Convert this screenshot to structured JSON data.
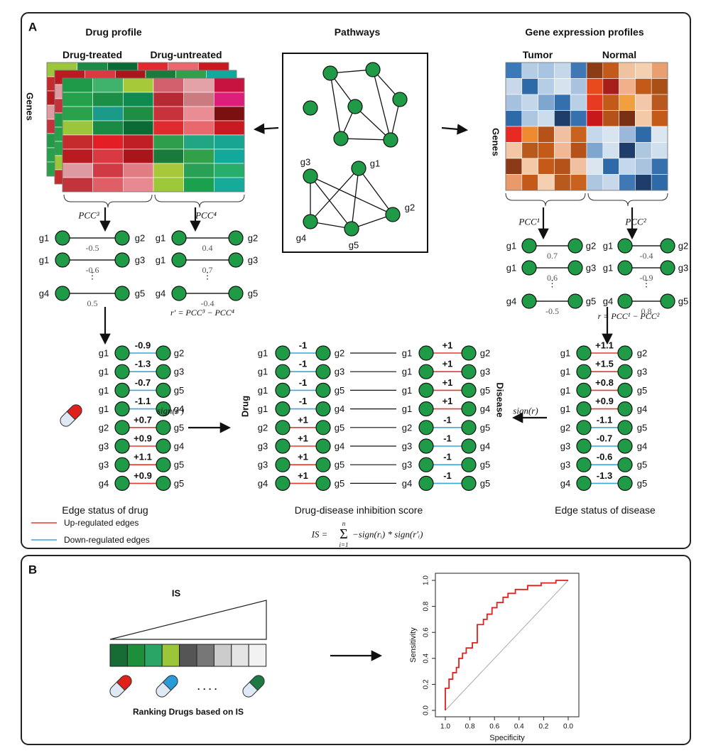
{
  "panel_a": {
    "label": "A",
    "drug_profile": "Drug profile",
    "drug_treated": "Drug-treated",
    "drug_untreated": "Drug-untreated",
    "genes_left": "Genes",
    "pathways": "Pathways",
    "pathway_nodes": [
      "g3",
      "g1",
      "g2",
      "g4",
      "g5"
    ],
    "gene_expression": "Gene expression profiles",
    "tumor": "Tumor",
    "normal": "Normal",
    "genes_right": "Genes",
    "dots": "⋮",
    "pcc_nets": [
      {
        "label": "PCC³",
        "edges": [
          {
            "a": "g1",
            "b": "g2",
            "value": "-0.5"
          },
          {
            "a": "g1",
            "b": "g3",
            "value": "-0.6"
          },
          {
            "a": "g4",
            "b": "g5",
            "value": "0.5"
          }
        ]
      },
      {
        "label": "PCC⁴",
        "edges": [
          {
            "a": "g1",
            "b": "g2",
            "value": "0.4"
          },
          {
            "a": "g1",
            "b": "g3",
            "value": "0.7"
          },
          {
            "a": "g4",
            "b": "g5",
            "value": "-0.4"
          }
        ]
      },
      {
        "label": "PCC¹",
        "edges": [
          {
            "a": "g1",
            "b": "g2",
            "value": "0.7"
          },
          {
            "a": "g1",
            "b": "g3",
            "value": "0.6"
          },
          {
            "a": "g4",
            "b": "g5",
            "value": "-0.5"
          }
        ]
      },
      {
        "label": "PCC²",
        "edges": [
          {
            "a": "g1",
            "b": "g2",
            "value": "-0.4"
          },
          {
            "a": "g1",
            "b": "g3",
            "value": "-0.9"
          },
          {
            "a": "g4",
            "b": "g5",
            "value": "0.8"
          }
        ]
      }
    ],
    "r_prime_formula": "r′ = PCC³ − PCC⁴",
    "r_formula": "r = PCC¹ − PCC²",
    "sign_r_prime": "sign(r′)",
    "sign_r": "sign(r)",
    "drug": "Drug",
    "disease": "Disease",
    "drug_edges": [
      {
        "a": "g1",
        "b": "g2",
        "value": "-0.9"
      },
      {
        "a": "g1",
        "b": "g3",
        "value": "-1.3"
      },
      {
        "a": "g1",
        "b": "g5",
        "value": "-0.7"
      },
      {
        "a": "g1",
        "b": "g4",
        "value": "-1.1"
      },
      {
        "a": "g2",
        "b": "g5",
        "value": "+0.7"
      },
      {
        "a": "g3",
        "b": "g4",
        "value": "+0.9"
      },
      {
        "a": "g3",
        "b": "g5",
        "value": "+1.1"
      },
      {
        "a": "g4",
        "b": "g5",
        "value": "+0.9"
      }
    ],
    "score_drug_edges": [
      {
        "a": "g1",
        "b": "g2",
        "value": "-1"
      },
      {
        "a": "g1",
        "b": "g3",
        "value": "-1"
      },
      {
        "a": "g1",
        "b": "g5",
        "value": "-1"
      },
      {
        "a": "g1",
        "b": "g4",
        "value": "-1"
      },
      {
        "a": "g2",
        "b": "g5",
        "value": "+1"
      },
      {
        "a": "g3",
        "b": "g4",
        "value": "+1"
      },
      {
        "a": "g3",
        "b": "g5",
        "value": "+1"
      },
      {
        "a": "g4",
        "b": "g5",
        "value": "+1"
      }
    ],
    "score_disease_edges": [
      {
        "a": "g1",
        "b": "g2",
        "value": "+1"
      },
      {
        "a": "g1",
        "b": "g3",
        "value": "+1"
      },
      {
        "a": "g1",
        "b": "g5",
        "value": "+1"
      },
      {
        "a": "g1",
        "b": "g4",
        "value": "+1"
      },
      {
        "a": "g2",
        "b": "g5",
        "value": "-1"
      },
      {
        "a": "g3",
        "b": "g4",
        "value": "-1"
      },
      {
        "a": "g3",
        "b": "g5",
        "value": "-1"
      },
      {
        "a": "g4",
        "b": "g5",
        "value": "-1"
      }
    ],
    "disease_edges": [
      {
        "a": "g1",
        "b": "g2",
        "value": "+1.1"
      },
      {
        "a": "g1",
        "b": "g3",
        "value": "+1.5"
      },
      {
        "a": "g1",
        "b": "g5",
        "value": "+0.8"
      },
      {
        "a": "g1",
        "b": "g4",
        "value": "+0.9"
      },
      {
        "a": "g2",
        "b": "g5",
        "value": "-1.1"
      },
      {
        "a": "g3",
        "b": "g4",
        "value": "-0.7"
      },
      {
        "a": "g3",
        "b": "g5",
        "value": "-0.6"
      },
      {
        "a": "g4",
        "b": "g5",
        "value": "-1.3"
      }
    ],
    "caption_drug": "Edge status of drug",
    "caption_score": "Drug-disease inhibition score",
    "caption_disease": "Edge status of disease",
    "is_formula": {
      "lhs": "IS =",
      "sum": "Σ",
      "top": "n",
      "bottom": "i=1",
      "rhs": "−sign(rᵢ) * sign(r′ᵢ)"
    },
    "legend": [
      {
        "label": "Up-regulated edges",
        "color": "#e8392f"
      },
      {
        "label": "Down-regulated edges",
        "color": "#3aa6dc"
      }
    ]
  },
  "panel_b": {
    "label": "B",
    "is_label": "IS",
    "dots": "· · · ·",
    "ranking": "Ranking Drugs based on IS",
    "roc": {
      "type": "line",
      "xlabel": "Specificity",
      "ylabel": "Sensitivity",
      "color": "#e0201b",
      "xlim": [
        1,
        0
      ],
      "ylim": [
        0,
        1
      ],
      "xticks": [
        {
          "value": 1,
          "label": "1.0"
        },
        0.8,
        0.6,
        0.4,
        0.2,
        {
          "value": 0,
          "label": "0.0"
        }
      ],
      "yticks": [
        {
          "value": 0,
          "label": "0.0"
        },
        0.2,
        0.4,
        0.6,
        0.8,
        {
          "value": 1,
          "label": "1.0"
        }
      ],
      "x": [
        1,
        1,
        0.97,
        0.97,
        0.94,
        0.94,
        0.91,
        0.91,
        0.89,
        0.89,
        0.86,
        0.86,
        0.83,
        0.83,
        0.78,
        0.78,
        0.74,
        0.74,
        0.69,
        0.69,
        0.66,
        0.66,
        0.62,
        0.62,
        0.58,
        0.58,
        0.53,
        0.53,
        0.49,
        0.49,
        0.43,
        0.43,
        0.33,
        0.33,
        0.22,
        0.22,
        0.1,
        0.1,
        0
      ],
      "y": [
        0,
        0.17,
        0.17,
        0.24,
        0.24,
        0.29,
        0.29,
        0.33,
        0.33,
        0.4,
        0.4,
        0.44,
        0.44,
        0.48,
        0.48,
        0.52,
        0.52,
        0.66,
        0.66,
        0.7,
        0.7,
        0.74,
        0.74,
        0.79,
        0.79,
        0.83,
        0.83,
        0.87,
        0.87,
        0.9,
        0.9,
        0.93,
        0.93,
        0.96,
        0.96,
        0.98,
        0.98,
        1,
        1
      ]
    }
  }
}
